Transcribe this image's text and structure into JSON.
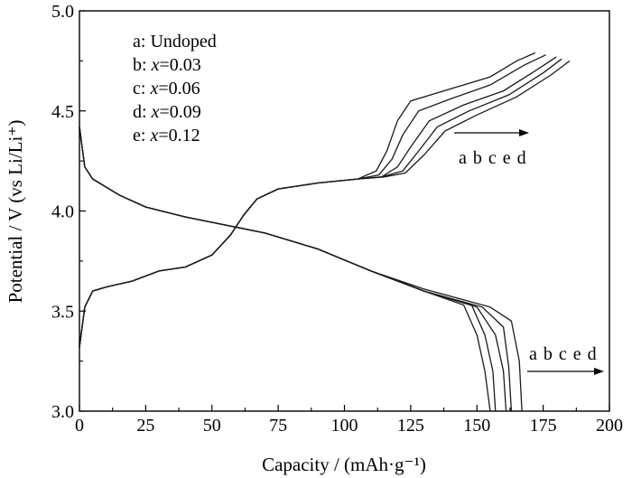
{
  "chart_data": {
    "type": "line",
    "xlabel": "Capacity / (mAh·g⁻¹)",
    "ylabel": "Potential / V (vs Li/Li⁺)",
    "xlim": [
      0,
      200
    ],
    "ylim": [
      3.0,
      5.0
    ],
    "xticks": [
      "0",
      "25",
      "50",
      "75",
      "100",
      "125",
      "150",
      "175",
      "200"
    ],
    "yticks": [
      "3.0",
      "3.5",
      "4.0",
      "4.5",
      "5.0"
    ],
    "grid": false,
    "legend": {
      "placement": "top-left",
      "entries": [
        {
          "key": "a",
          "prefix": "a: ",
          "var": "",
          "rest": "Undoped"
        },
        {
          "key": "b",
          "prefix": "b: ",
          "var": "x",
          "rest": "=0.03"
        },
        {
          "key": "c",
          "prefix": "c: ",
          "var": "x",
          "rest": "=0.06"
        },
        {
          "key": "d",
          "prefix": "d: ",
          "var": "x",
          "rest": "=0.09"
        },
        {
          "key": "e",
          "prefix": "e: ",
          "var": "x",
          "rest": "=0.12"
        }
      ]
    },
    "annotations": {
      "charge_order": "a b c e d",
      "discharge_order": "a b c e d"
    },
    "series": [
      {
        "name": "a",
        "charge": [
          [
            0,
            3.32
          ],
          [
            2,
            3.52
          ],
          [
            5,
            3.6
          ],
          [
            10,
            3.62
          ],
          [
            20,
            3.65
          ],
          [
            30,
            3.7
          ],
          [
            40,
            3.72
          ],
          [
            50,
            3.78
          ],
          [
            57,
            3.88
          ],
          [
            62,
            3.98
          ],
          [
            67,
            4.06
          ],
          [
            75,
            4.11
          ],
          [
            90,
            4.14
          ],
          [
            105,
            4.16
          ],
          [
            112,
            4.2
          ],
          [
            116,
            4.3
          ],
          [
            120,
            4.45
          ],
          [
            125,
            4.55
          ],
          [
            140,
            4.61
          ],
          [
            155,
            4.67
          ],
          [
            165,
            4.75
          ],
          [
            172,
            4.79
          ]
        ],
        "discharge": [
          [
            0,
            4.42
          ],
          [
            2,
            4.22
          ],
          [
            5,
            4.16
          ],
          [
            15,
            4.08
          ],
          [
            25,
            4.02
          ],
          [
            40,
            3.97
          ],
          [
            55,
            3.93
          ],
          [
            70,
            3.89
          ],
          [
            90,
            3.81
          ],
          [
            110,
            3.7
          ],
          [
            130,
            3.6
          ],
          [
            145,
            3.53
          ],
          [
            150,
            3.38
          ],
          [
            153,
            3.2
          ],
          [
            155,
            3.0
          ]
        ]
      },
      {
        "name": "b",
        "charge": [
          [
            0,
            3.32
          ],
          [
            2,
            3.52
          ],
          [
            5,
            3.6
          ],
          [
            10,
            3.62
          ],
          [
            20,
            3.65
          ],
          [
            30,
            3.7
          ],
          [
            40,
            3.72
          ],
          [
            50,
            3.78
          ],
          [
            57,
            3.88
          ],
          [
            62,
            3.98
          ],
          [
            67,
            4.06
          ],
          [
            75,
            4.11
          ],
          [
            90,
            4.14
          ],
          [
            105,
            4.16
          ],
          [
            113,
            4.18
          ],
          [
            118,
            4.26
          ],
          [
            122,
            4.38
          ],
          [
            128,
            4.5
          ],
          [
            140,
            4.56
          ],
          [
            155,
            4.63
          ],
          [
            168,
            4.73
          ],
          [
            176,
            4.78
          ]
        ],
        "discharge": [
          [
            0,
            4.42
          ],
          [
            2,
            4.22
          ],
          [
            5,
            4.16
          ],
          [
            15,
            4.08
          ],
          [
            25,
            4.02
          ],
          [
            40,
            3.97
          ],
          [
            55,
            3.93
          ],
          [
            70,
            3.89
          ],
          [
            90,
            3.81
          ],
          [
            110,
            3.7
          ],
          [
            130,
            3.6
          ],
          [
            148,
            3.53
          ],
          [
            153,
            3.38
          ],
          [
            156,
            3.2
          ],
          [
            157,
            3.0
          ]
        ]
      },
      {
        "name": "c",
        "charge": [
          [
            0,
            3.32
          ],
          [
            2,
            3.52
          ],
          [
            5,
            3.6
          ],
          [
            10,
            3.62
          ],
          [
            20,
            3.65
          ],
          [
            30,
            3.7
          ],
          [
            40,
            3.72
          ],
          [
            50,
            3.78
          ],
          [
            57,
            3.88
          ],
          [
            62,
            3.98
          ],
          [
            67,
            4.06
          ],
          [
            75,
            4.11
          ],
          [
            90,
            4.14
          ],
          [
            105,
            4.16
          ],
          [
            114,
            4.17
          ],
          [
            120,
            4.22
          ],
          [
            125,
            4.32
          ],
          [
            132,
            4.45
          ],
          [
            145,
            4.53
          ],
          [
            160,
            4.6
          ],
          [
            172,
            4.7
          ],
          [
            180,
            4.77
          ]
        ],
        "discharge": [
          [
            0,
            4.42
          ],
          [
            2,
            4.22
          ],
          [
            5,
            4.16
          ],
          [
            15,
            4.08
          ],
          [
            25,
            4.02
          ],
          [
            40,
            3.97
          ],
          [
            55,
            3.93
          ],
          [
            70,
            3.89
          ],
          [
            90,
            3.81
          ],
          [
            110,
            3.7
          ],
          [
            130,
            3.6
          ],
          [
            150,
            3.52
          ],
          [
            157,
            3.38
          ],
          [
            160,
            3.2
          ],
          [
            161,
            3.0
          ]
        ]
      },
      {
        "name": "d",
        "charge": [
          [
            0,
            3.32
          ],
          [
            2,
            3.52
          ],
          [
            5,
            3.6
          ],
          [
            10,
            3.62
          ],
          [
            20,
            3.65
          ],
          [
            30,
            3.7
          ],
          [
            40,
            3.72
          ],
          [
            50,
            3.78
          ],
          [
            57,
            3.88
          ],
          [
            62,
            3.98
          ],
          [
            67,
            4.06
          ],
          [
            75,
            4.11
          ],
          [
            90,
            4.14
          ],
          [
            105,
            4.16
          ],
          [
            115,
            4.17
          ],
          [
            123,
            4.19
          ],
          [
            130,
            4.28
          ],
          [
            138,
            4.4
          ],
          [
            150,
            4.48
          ],
          [
            165,
            4.57
          ],
          [
            178,
            4.68
          ],
          [
            185,
            4.75
          ]
        ],
        "discharge": [
          [
            0,
            4.42
          ],
          [
            2,
            4.22
          ],
          [
            5,
            4.16
          ],
          [
            15,
            4.08
          ],
          [
            25,
            4.02
          ],
          [
            40,
            3.97
          ],
          [
            55,
            3.93
          ],
          [
            70,
            3.89
          ],
          [
            90,
            3.81
          ],
          [
            110,
            3.7
          ],
          [
            130,
            3.61
          ],
          [
            155,
            3.52
          ],
          [
            163,
            3.45
          ],
          [
            166,
            3.25
          ],
          [
            167,
            3.0
          ]
        ]
      },
      {
        "name": "e",
        "charge": [
          [
            0,
            3.32
          ],
          [
            2,
            3.52
          ],
          [
            5,
            3.6
          ],
          [
            10,
            3.62
          ],
          [
            20,
            3.65
          ],
          [
            30,
            3.7
          ],
          [
            40,
            3.72
          ],
          [
            50,
            3.78
          ],
          [
            57,
            3.88
          ],
          [
            62,
            3.98
          ],
          [
            67,
            4.06
          ],
          [
            75,
            4.11
          ],
          [
            90,
            4.14
          ],
          [
            105,
            4.16
          ],
          [
            114,
            4.17
          ],
          [
            122,
            4.2
          ],
          [
            128,
            4.3
          ],
          [
            135,
            4.42
          ],
          [
            147,
            4.5
          ],
          [
            162,
            4.58
          ],
          [
            175,
            4.69
          ],
          [
            182,
            4.76
          ]
        ],
        "discharge": [
          [
            0,
            4.42
          ],
          [
            2,
            4.22
          ],
          [
            5,
            4.16
          ],
          [
            15,
            4.08
          ],
          [
            25,
            4.02
          ],
          [
            40,
            3.97
          ],
          [
            55,
            3.93
          ],
          [
            70,
            3.89
          ],
          [
            90,
            3.81
          ],
          [
            110,
            3.7
          ],
          [
            130,
            3.6
          ],
          [
            152,
            3.52
          ],
          [
            160,
            3.42
          ],
          [
            162,
            3.22
          ],
          [
            163,
            3.0
          ]
        ]
      }
    ]
  }
}
